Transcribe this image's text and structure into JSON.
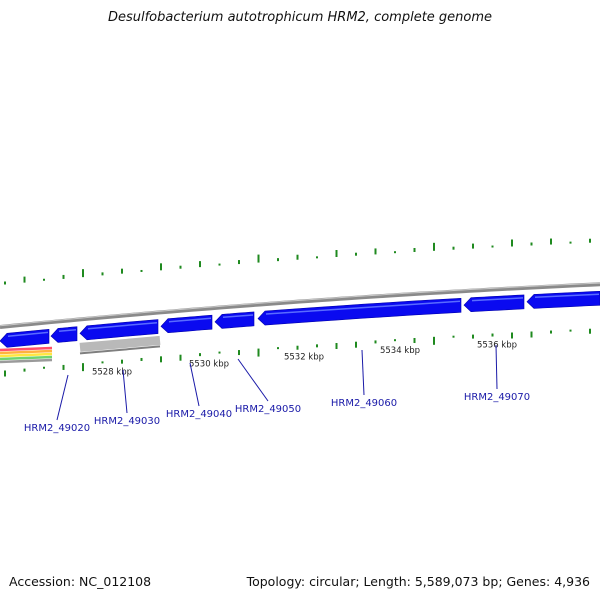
{
  "title": "Desulfobacterium autotrophicum HRM2, complete genome",
  "footer": {
    "accession_label": "Accession:",
    "accession": "NC_012108",
    "topology_label": "Topology:",
    "topology": "circular",
    "length_label": "Length:",
    "length": "5,589,073 bp",
    "genes_label": "Genes:",
    "genes": "4,936"
  },
  "colors": {
    "backbone": "#8a8a8a",
    "gene": "#0a0af0",
    "gc_tick": "#1f8a1f",
    "locus_label": "#1a1aa8",
    "selected_region": "#b9b9b9"
  },
  "tick_labels": [
    "5528 kbp",
    "5530 kbp",
    "5532 kbp",
    "5534 kbp",
    "5536 kbp"
  ],
  "locus_tags": [
    "HRM2_49020",
    "HRM2_49030",
    "HRM2_49040",
    "HRM2_49050",
    "HRM2_49060",
    "HRM2_49070"
  ],
  "feature_stripe_colors": [
    "#ff4f6b",
    "#ffb23e",
    "#ffe640",
    "#6fd36f",
    "#9a9a9a"
  ]
}
